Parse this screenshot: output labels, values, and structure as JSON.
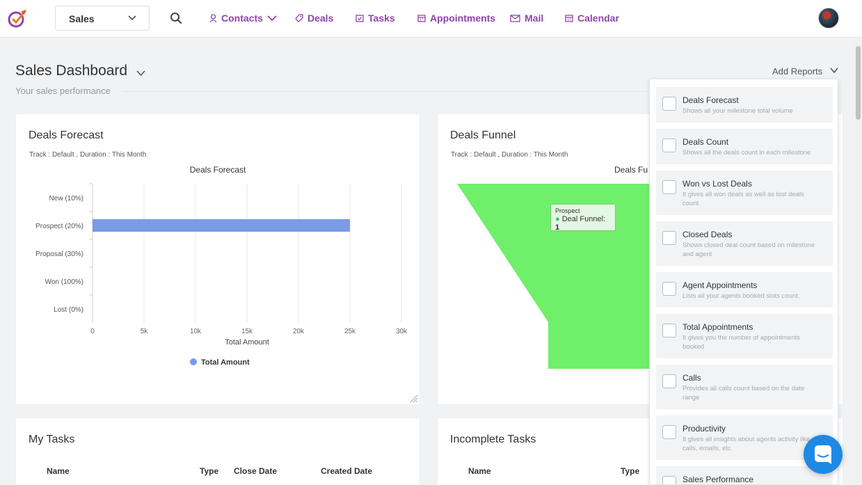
{
  "brand": {
    "accent": "#8e44ad",
    "chart_bar": "#7b9be8",
    "funnel": "#70ef6a"
  },
  "topbar": {
    "module_select": "Sales",
    "nav": [
      {
        "label": "Contacts",
        "icon": "contact-icon"
      },
      {
        "label": "Deals",
        "icon": "tag-icon"
      },
      {
        "label": "Tasks",
        "icon": "task-icon"
      },
      {
        "label": "Appointments",
        "icon": "appointment-icon"
      },
      {
        "label": "Mail",
        "icon": "mail-icon"
      },
      {
        "label": "Calendar",
        "icon": "calendar-icon"
      }
    ]
  },
  "dashboard": {
    "title": "Sales Dashboard",
    "subtitle": "Your sales performance",
    "add_reports": "Add Reports"
  },
  "deals_forecast": {
    "title": "Deals Forecast",
    "meta": "Track : Default ,  Duration : This Month"
  },
  "deals_funnel": {
    "title": "Deals Funnel",
    "meta": "Track : Default ,  Duration : This Month",
    "chart_title_partial": "Deals Fu",
    "tooltip": {
      "category": "Prospect",
      "series": "Deal Funnel: ",
      "value": "1"
    }
  },
  "chart_data": {
    "type": "bar",
    "orientation": "horizontal",
    "title": "Deals Forecast",
    "categories": [
      "New (10%)",
      "Prospect (20%)",
      "Proposal (30%)",
      "Won (100%)",
      "Lost (0%)"
    ],
    "series": [
      {
        "name": "Total Amount",
        "values": [
          0,
          25000,
          0,
          0,
          0
        ]
      }
    ],
    "xlabel": "Total Amount",
    "xlim": [
      0,
      30000
    ],
    "xticks": [
      "0",
      "5k",
      "10k",
      "15k",
      "20k",
      "25k",
      "30k"
    ],
    "grid": true,
    "legend": "bottom"
  },
  "my_tasks": {
    "title": "My Tasks",
    "columns": [
      "Name",
      "Type",
      "Close Date",
      "Created Date"
    ]
  },
  "incomplete_tasks": {
    "title": "Incomplete Tasks",
    "columns": [
      "Name",
      "Type"
    ]
  },
  "reports_panel": {
    "options": [
      {
        "title": "Deals Forecast",
        "desc": "Shows all your milestone total volume"
      },
      {
        "title": "Deals Count",
        "desc": "Shows all the deals count in each milestone"
      },
      {
        "title": "Won vs Lost Deals",
        "desc": "It gives all won deals as well as lost deals count"
      },
      {
        "title": "Closed Deals",
        "desc": "Shows closed deal count based on milestone and agent"
      },
      {
        "title": "Agent Appointments",
        "desc": "Lists all your agents booked slots count."
      },
      {
        "title": "Total Appointments",
        "desc": "It gives you the number of appointments booked"
      },
      {
        "title": "Calls",
        "desc": "Provides all calls count based on the date range"
      },
      {
        "title": "Productivity",
        "desc": "It gives all insights about agents activity like calls, emails, etc"
      },
      {
        "title": "Sales Performance",
        "desc": ""
      }
    ]
  }
}
